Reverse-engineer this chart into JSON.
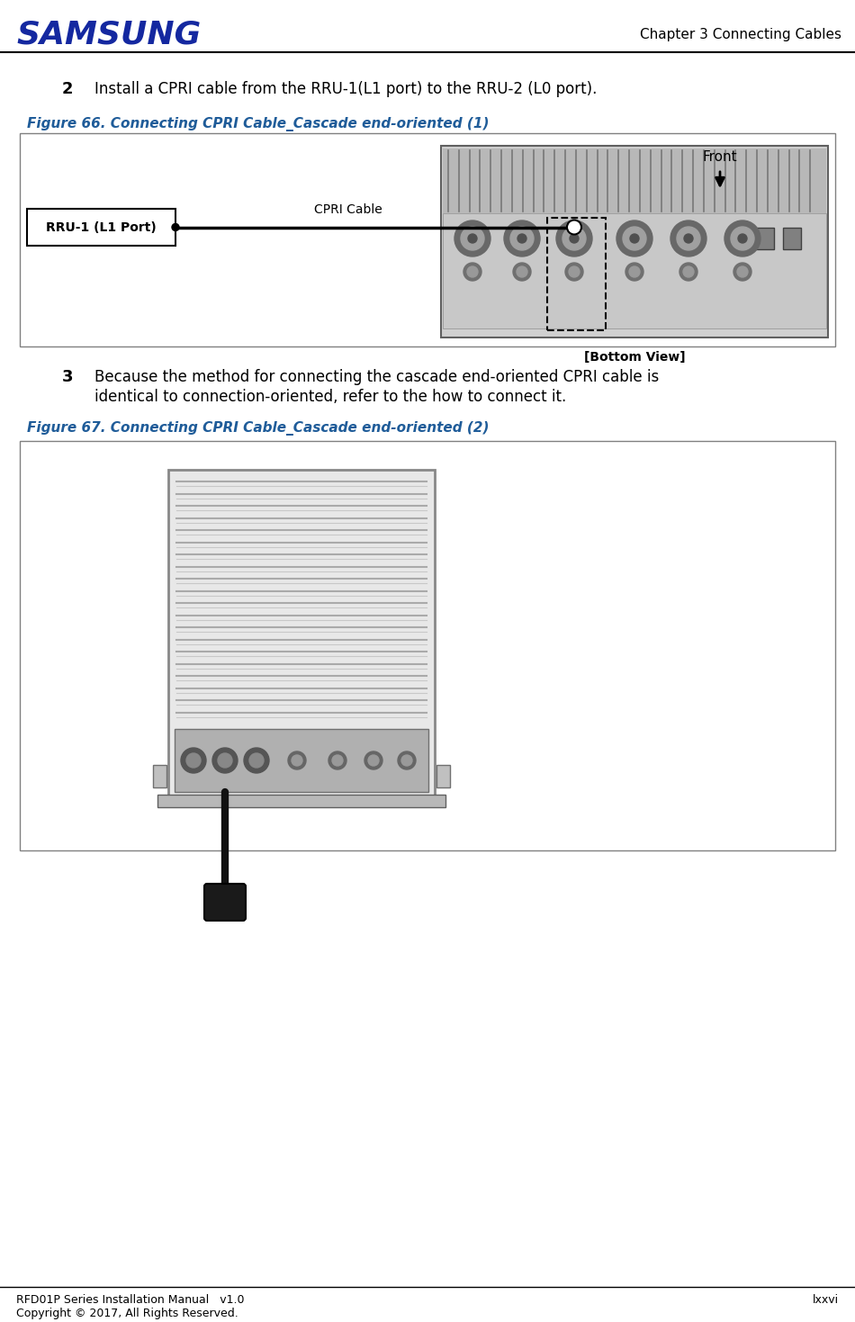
{
  "page_title_left": "Chapter 3 Connecting Cables",
  "samsung_logo_text": "SAMSUNG",
  "samsung_logo_color": "#1428A0",
  "header_line_color": "#000000",
  "step2_number": "2",
  "step2_text": "Install a CPRI cable from the RRU-1(L1 port) to the RRU-2 (L0 port).",
  "fig66_caption": "Figure 66. Connecting CPRI Cable_Cascade end-oriented (1)",
  "fig66_caption_color": "#1F5C99",
  "fig66_box_bg": "#FFFFFF",
  "fig66_box_border": "#808080",
  "front_label": "Front",
  "bottom_view_label": "[Bottom View]",
  "rru_box_label": "RRU-1 (L1 Port)",
  "cpri_cable_label": "CPRI Cable",
  "step3_number": "3",
  "step3_text": "Because the method for connecting the cascade end-oriented CPRI cable is\nidentical to connection-oriented, refer to the how to connect it.",
  "fig67_caption": "Figure 67. Connecting CPRI Cable_Cascade end-oriented (2)",
  "fig67_caption_color": "#1F5C99",
  "fig67_box_bg": "#FFFFFF",
  "fig67_box_border": "#808080",
  "footer_left": "RFD01P Series Installation Manual   v1.0",
  "footer_right": "lxxvi",
  "footer_copy": "Copyright © 2017, All Rights Reserved.",
  "footer_line_color": "#000000",
  "bg_color": "#FFFFFF",
  "body_text_color": "#000000",
  "fig66_diagram_bg": "#FFFFFF",
  "rru_image_color": "#C8C8C8",
  "cable_color": "#000000"
}
